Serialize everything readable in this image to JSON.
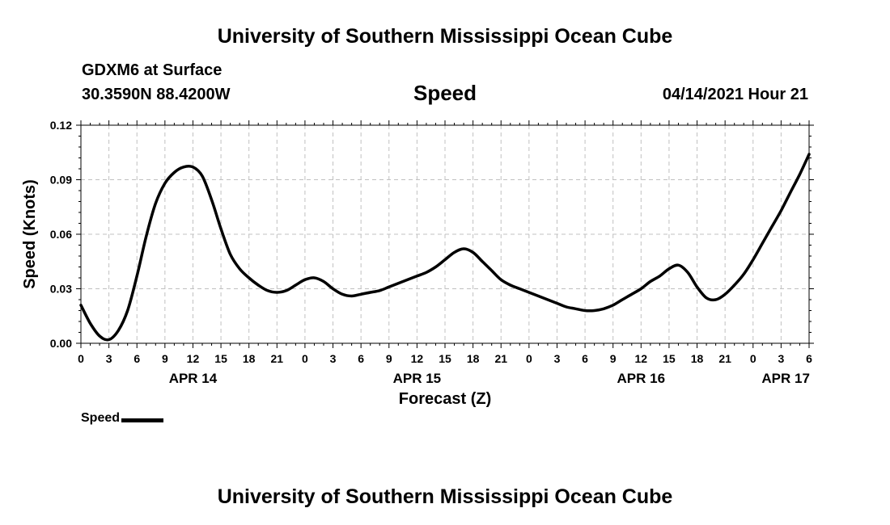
{
  "header": {
    "title": "University of Southern Mississippi Ocean Cube",
    "station": "GDXM6 at Surface",
    "coords": "30.3590N  88.4200W",
    "datetime": "04/14/2021 Hour 21"
  },
  "footer": {
    "title": "University of Southern Mississippi Ocean Cube"
  },
  "colors": {
    "line": "#000000",
    "grid": "#c0c0c0"
  },
  "chart_data": {
    "type": "line",
    "title": "Speed",
    "xlabel": "Forecast (Z)",
    "ylabel": "Speed (Knots)",
    "xlim": [
      0,
      78
    ],
    "ylim": [
      0,
      0.12
    ],
    "grid": true,
    "y_ticks": [
      0.0,
      0.03,
      0.06,
      0.09,
      0.12
    ],
    "y_tick_labels": [
      "0.00",
      "0.03",
      "0.06",
      "0.09",
      "0.12"
    ],
    "x_ticks": [
      0,
      3,
      6,
      9,
      12,
      15,
      18,
      21,
      24,
      27,
      30,
      33,
      36,
      39,
      42,
      45,
      48,
      51,
      54,
      57,
      60,
      63,
      66,
      69,
      72,
      75,
      78
    ],
    "x_tick_labels": [
      "0",
      "3",
      "6",
      "9",
      "12",
      "15",
      "18",
      "21",
      "0",
      "3",
      "6",
      "9",
      "12",
      "15",
      "18",
      "21",
      "0",
      "3",
      "6",
      "9",
      "12",
      "15",
      "18",
      "21",
      "0",
      "3",
      "6"
    ],
    "date_labels": [
      {
        "hour": 12,
        "label": "APR 14"
      },
      {
        "hour": 36,
        "label": "APR 15"
      },
      {
        "hour": 60,
        "label": "APR 16"
      },
      {
        "hour": 75.5,
        "label": "APR 17"
      }
    ],
    "legend": [
      {
        "name": "Speed",
        "position": "bottom-left"
      }
    ],
    "series": [
      {
        "name": "Speed",
        "x": [
          0,
          1,
          2,
          3,
          4,
          5,
          6,
          7,
          8,
          9,
          10,
          11,
          12,
          13,
          14,
          15,
          16,
          17,
          18,
          19,
          20,
          21,
          22,
          23,
          24,
          25,
          26,
          27,
          28,
          29,
          30,
          31,
          32,
          33,
          34,
          35,
          36,
          37,
          38,
          39,
          40,
          41,
          42,
          43,
          44,
          45,
          46,
          47,
          48,
          49,
          50,
          51,
          52,
          53,
          54,
          55,
          56,
          57,
          58,
          59,
          60,
          61,
          62,
          63,
          64,
          65,
          66,
          67,
          68,
          69,
          70,
          71,
          72,
          73,
          74,
          75,
          76,
          77,
          78
        ],
        "values": [
          0.021,
          0.011,
          0.004,
          0.002,
          0.007,
          0.018,
          0.037,
          0.059,
          0.077,
          0.088,
          0.094,
          0.097,
          0.097,
          0.092,
          0.079,
          0.063,
          0.049,
          0.041,
          0.036,
          0.032,
          0.029,
          0.028,
          0.029,
          0.032,
          0.035,
          0.036,
          0.034,
          0.03,
          0.027,
          0.026,
          0.027,
          0.028,
          0.029,
          0.031,
          0.033,
          0.035,
          0.037,
          0.039,
          0.042,
          0.046,
          0.05,
          0.052,
          0.05,
          0.045,
          0.04,
          0.035,
          0.032,
          0.03,
          0.028,
          0.026,
          0.024,
          0.022,
          0.02,
          0.019,
          0.018,
          0.018,
          0.019,
          0.021,
          0.024,
          0.027,
          0.03,
          0.034,
          0.037,
          0.041,
          0.043,
          0.039,
          0.031,
          0.025,
          0.024,
          0.027,
          0.032,
          0.038,
          0.046,
          0.055,
          0.064,
          0.073,
          0.083,
          0.093,
          0.104
        ]
      }
    ]
  }
}
